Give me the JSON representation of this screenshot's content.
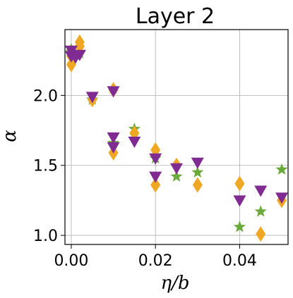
{
  "chart_data": {
    "type": "scatter",
    "title": "Layer 2",
    "xlabel": "η/b",
    "ylabel": "α",
    "xlim": [
      -0.0015,
      0.0515
    ],
    "ylim": [
      0.935,
      2.47
    ],
    "xticks": [
      0.0,
      0.02,
      0.04
    ],
    "xtick_labels": [
      "0.00",
      "0.02",
      "0.04"
    ],
    "yticks": [
      1.0,
      1.5,
      2.0
    ],
    "ytick_labels": [
      "1.0",
      "1.5",
      "2.0"
    ],
    "grid": true,
    "legend": "none",
    "series": [
      {
        "marker": "star",
        "color": "#6aaa3a",
        "points": [
          [
            0.0,
            2.31
          ],
          [
            0.0,
            2.33
          ],
          [
            0.001,
            2.29
          ],
          [
            0.002,
            2.3
          ],
          [
            0.005,
            1.97
          ],
          [
            0.01,
            2.05
          ],
          [
            0.01,
            1.66
          ],
          [
            0.015,
            1.76
          ],
          [
            0.02,
            1.55
          ],
          [
            0.025,
            1.42
          ],
          [
            0.03,
            1.45
          ],
          [
            0.04,
            1.06
          ],
          [
            0.045,
            1.17
          ],
          [
            0.05,
            1.47
          ]
        ]
      },
      {
        "marker": "diamond",
        "color": "#f0a824",
        "points": [
          [
            0.0,
            2.22
          ],
          [
            0.0,
            2.28
          ],
          [
            0.002,
            2.38
          ],
          [
            0.002,
            2.35
          ],
          [
            0.005,
            1.97
          ],
          [
            0.01,
            2.04
          ],
          [
            0.01,
            1.59
          ],
          [
            0.015,
            1.73
          ],
          [
            0.02,
            1.61
          ],
          [
            0.02,
            1.36
          ],
          [
            0.025,
            1.5
          ],
          [
            0.03,
            1.36
          ],
          [
            0.04,
            1.37
          ],
          [
            0.045,
            1.01
          ],
          [
            0.05,
            1.25
          ]
        ]
      },
      {
        "marker": "triangle-down",
        "color": "#7f2b91",
        "points": [
          [
            0.0,
            2.32
          ],
          [
            0.0,
            2.28
          ],
          [
            0.001,
            2.27
          ],
          [
            0.002,
            2.29
          ],
          [
            0.005,
            1.99
          ],
          [
            0.01,
            2.03
          ],
          [
            0.01,
            1.7
          ],
          [
            0.01,
            1.63
          ],
          [
            0.015,
            1.67
          ],
          [
            0.02,
            1.55
          ],
          [
            0.02,
            1.42
          ],
          [
            0.025,
            1.48
          ],
          [
            0.03,
            1.52
          ],
          [
            0.04,
            1.25
          ],
          [
            0.045,
            1.32
          ],
          [
            0.05,
            1.27
          ]
        ]
      }
    ]
  }
}
